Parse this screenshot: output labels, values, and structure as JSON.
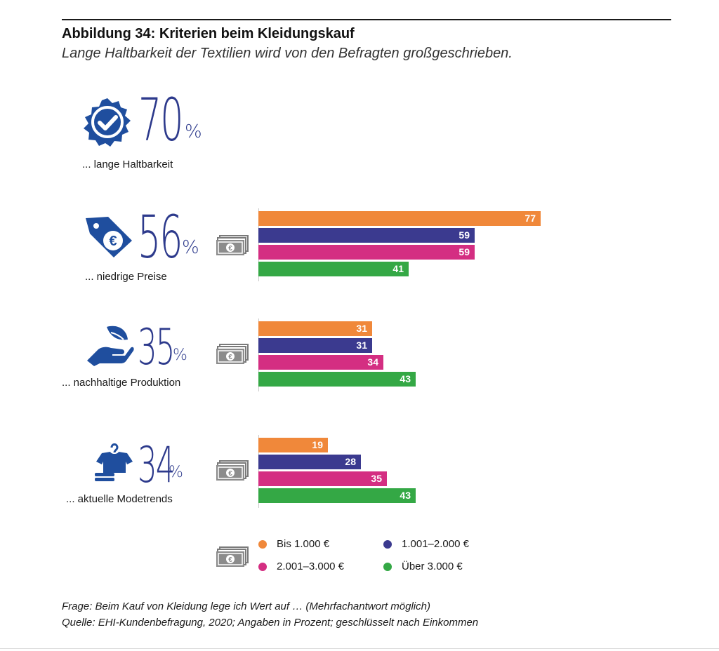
{
  "title": "Abbildung 34: Kriterien beim Kleidungskauf",
  "subtitle": "Lange Haltbarkeit der Textilien wird von den Befragten großgeschrieben.",
  "percent_sign": "%",
  "criteria": [
    {
      "icon": "quality-badge-icon",
      "total": "70",
      "label": "... lange Haltbarkeit"
    },
    {
      "icon": "euro-price-tag-icon",
      "total": "56",
      "label": "... niedrige Preise"
    },
    {
      "icon": "hand-with-leaf-icon",
      "total": "35",
      "label": "... nachhaltige Produktion"
    },
    {
      "icon": "fashion-trend-icon",
      "total": "34",
      "label": "... aktuelle Modetrends"
    }
  ],
  "chart_data": {
    "type": "bar",
    "orientation": "horizontal",
    "categories": [
      "... niedrige Preise",
      "... nachhaltige Produktion",
      "... aktuelle Modetrends"
    ],
    "series": [
      {
        "name": "Bis 1.000 €",
        "color": "#f0883a",
        "values": [
          77,
          31,
          19
        ]
      },
      {
        "name": "1.001–2.000 €",
        "color": "#3b3a8f",
        "values": [
          59,
          31,
          28
        ]
      },
      {
        "name": "2.001–3.000 €",
        "color": "#d42e82",
        "values": [
          59,
          34,
          35
        ]
      },
      {
        "name": "Über 3.000 €",
        "color": "#34a845",
        "values": [
          41,
          43,
          43
        ]
      }
    ],
    "data_labels": true,
    "legend_position": "bottom"
  },
  "legend": [
    {
      "label": "Bis 1.000 €",
      "color": "#f0883a"
    },
    {
      "label": "1.001–2.000 €",
      "color": "#3b3a8f"
    },
    {
      "label": "2.001–3.000 €",
      "color": "#d42e82"
    },
    {
      "label": "Über 3.000 €",
      "color": "#34a845"
    }
  ],
  "footnote": {
    "question": "Frage: Beim Kauf von Kleidung lege ich Wert auf … (Mehrfachantwort möglich)",
    "source": "Quelle: EHI-Kundenbefragung, 2020; Angaben in Prozent; geschlüsselt nach Einkommen"
  },
  "colors": {
    "icon_blue": "#1f4e9e",
    "number_blue": "#2d3a8c"
  }
}
